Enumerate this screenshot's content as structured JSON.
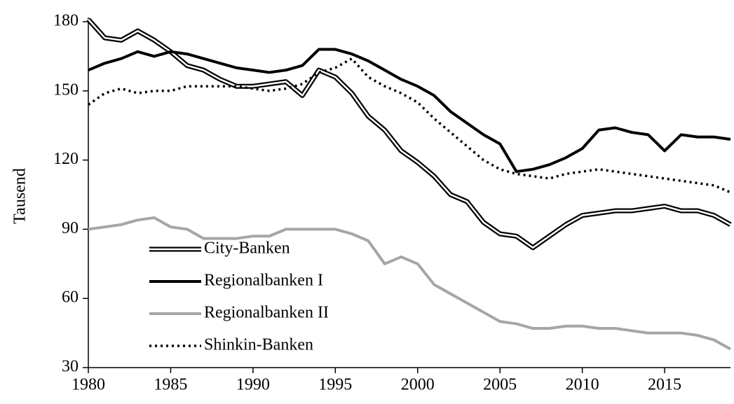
{
  "chart_data": {
    "type": "line",
    "y_label": "Tausend",
    "x": [
      1980,
      1981,
      1982,
      1983,
      1984,
      1985,
      1986,
      1987,
      1988,
      1989,
      1990,
      1991,
      1992,
      1993,
      1994,
      1995,
      1996,
      1997,
      1998,
      1999,
      2000,
      2001,
      2002,
      2003,
      2004,
      2005,
      2006,
      2007,
      2008,
      2009,
      2010,
      2011,
      2012,
      2013,
      2014,
      2015,
      2016,
      2017,
      2018,
      2019
    ],
    "xlim": [
      1980,
      2019
    ],
    "xticks": [
      1980,
      1985,
      1990,
      1995,
      2000,
      2005,
      2010,
      2015
    ],
    "ylim": [
      30,
      180
    ],
    "yticks": [
      30,
      60,
      90,
      120,
      150,
      180
    ],
    "legend": "left",
    "series": [
      {
        "name": "City-Banken",
        "color": "#000000",
        "style": "double",
        "values": [
          181,
          173,
          172,
          176,
          172,
          167,
          161,
          159,
          155,
          152,
          152,
          153,
          154,
          148,
          159,
          156,
          149,
          139,
          133,
          124,
          119,
          113,
          105,
          102,
          93,
          88,
          87,
          82,
          87,
          92,
          96,
          97,
          98,
          98,
          99,
          100,
          98,
          98,
          96,
          92
        ]
      },
      {
        "name": "Regionalbanken I",
        "color": "#000000",
        "style": "solid",
        "values": [
          159,
          162,
          164,
          167,
          165,
          167,
          166,
          164,
          162,
          160,
          159,
          158,
          159,
          161,
          168,
          168,
          166,
          163,
          159,
          155,
          152,
          148,
          141,
          136,
          131,
          127,
          115,
          116,
          118,
          121,
          125,
          133,
          134,
          132,
          131,
          124,
          131,
          130,
          130,
          129
        ]
      },
      {
        "name": "Regionalbanken II",
        "color": "#a6a6a6",
        "style": "solid",
        "values": [
          90,
          91,
          92,
          94,
          95,
          91,
          90,
          86,
          86,
          86,
          87,
          87,
          90,
          90,
          90,
          90,
          88,
          85,
          75,
          78,
          75,
          66,
          62,
          58,
          54,
          50,
          49,
          47,
          47,
          48,
          48,
          47,
          47,
          46,
          45,
          45,
          45,
          44,
          42,
          38
        ]
      },
      {
        "name": "Shinkin-Banken",
        "color": "#000000",
        "style": "dotted",
        "values": [
          144,
          149,
          151,
          149,
          150,
          150,
          152,
          152,
          152,
          152,
          151,
          150,
          151,
          153,
          158,
          160,
          164,
          156,
          152,
          149,
          145,
          138,
          132,
          126,
          120,
          116,
          114,
          113,
          112,
          114,
          115,
          116,
          115,
          114,
          113,
          112,
          111,
          110,
          109,
          106
        ]
      }
    ]
  }
}
